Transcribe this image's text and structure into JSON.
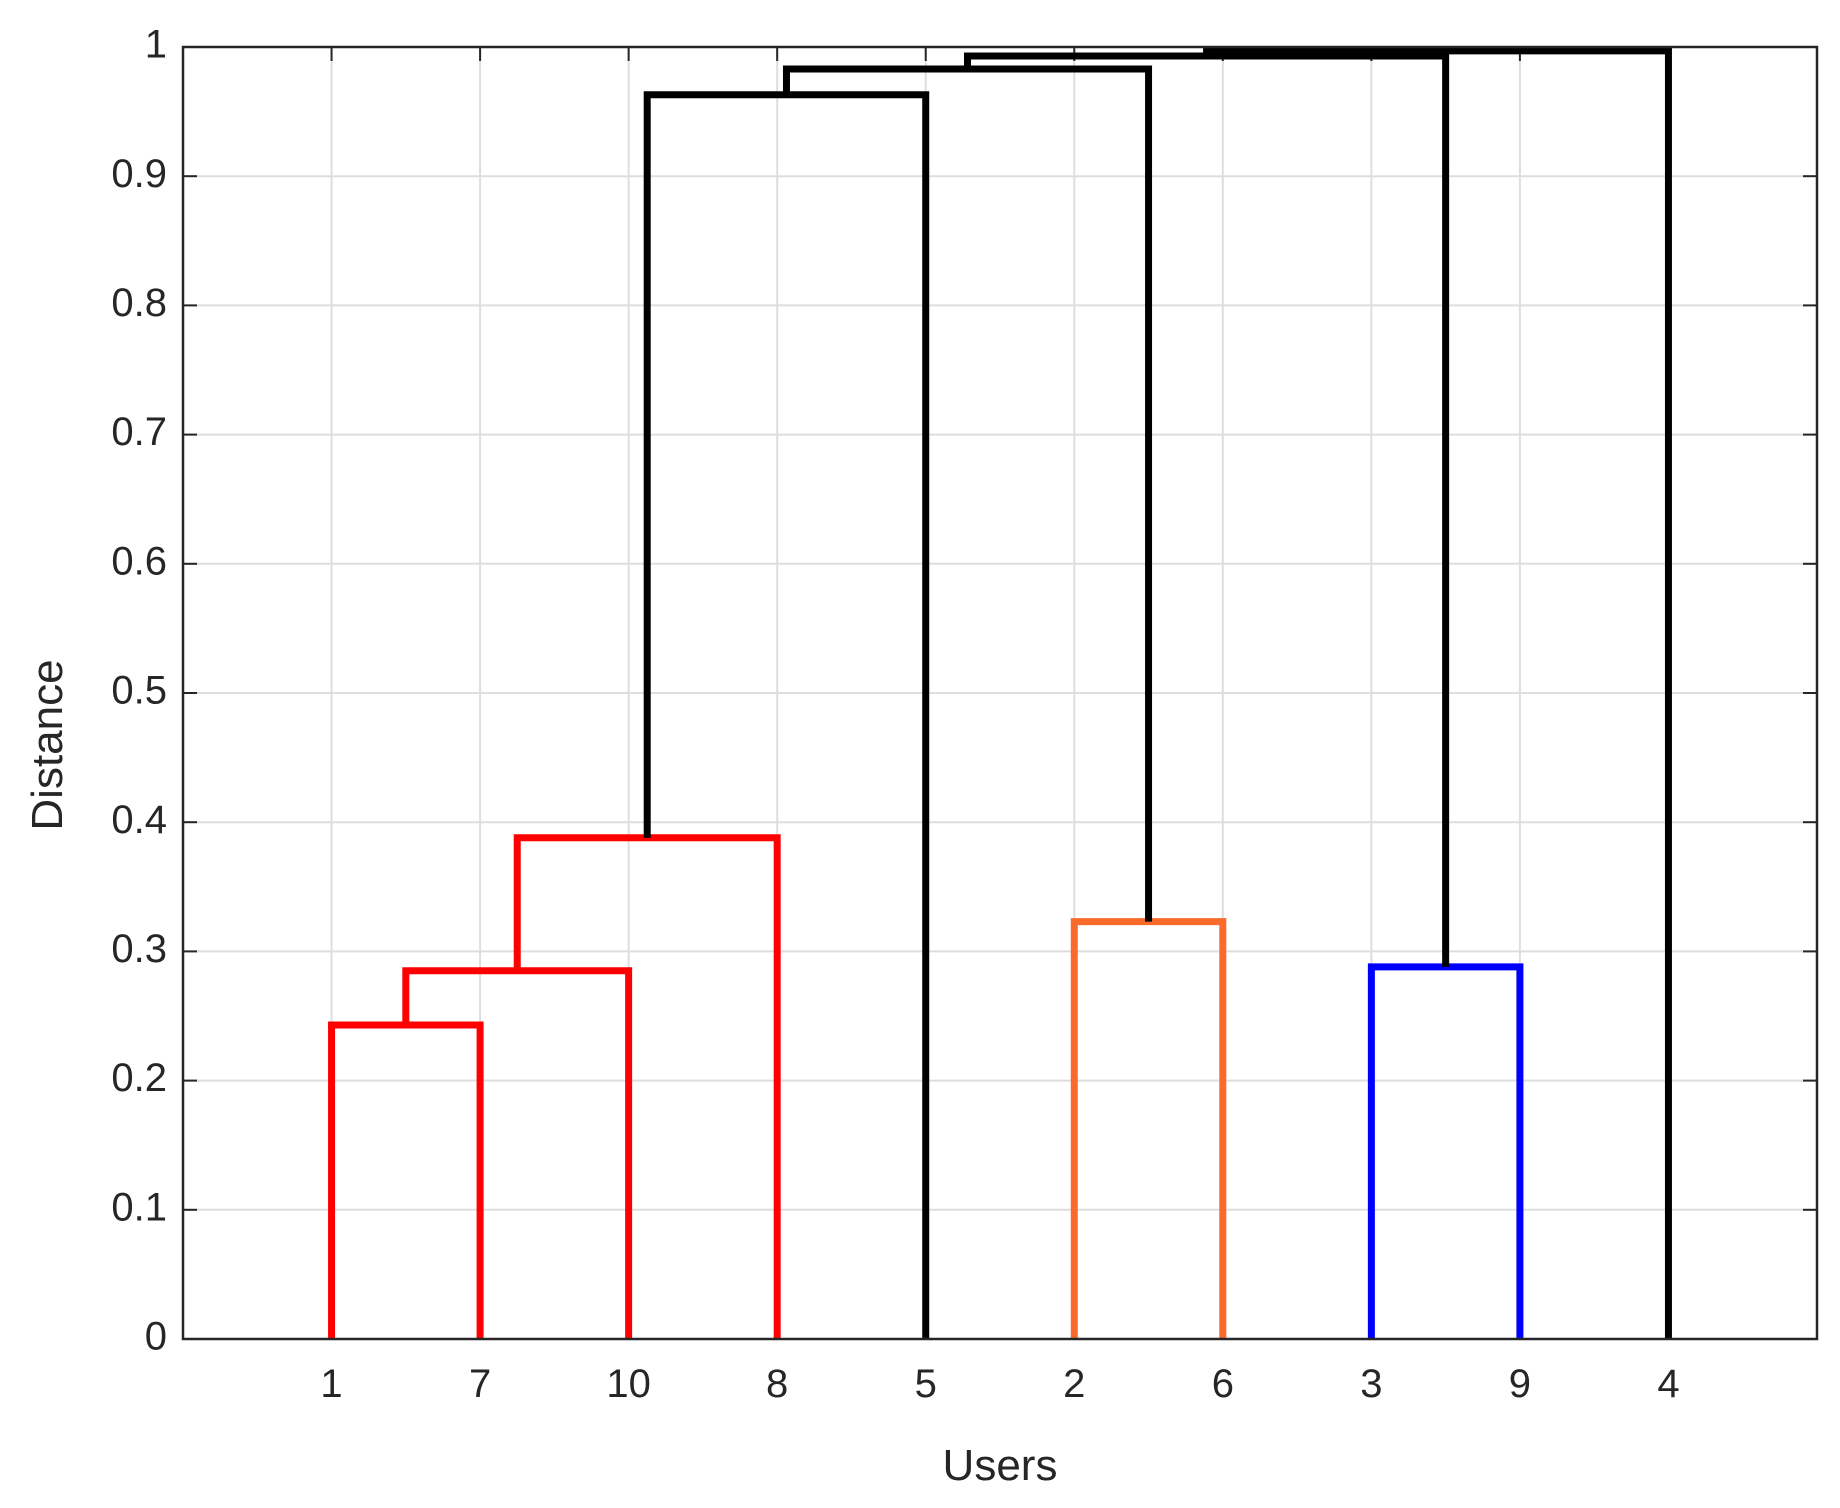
{
  "chart_data": {
    "type": "dendrogram",
    "xlabel": "Users",
    "ylabel": "Distance",
    "categories": [
      "1",
      "7",
      "10",
      "8",
      "5",
      "2",
      "6",
      "3",
      "9",
      "4"
    ],
    "merges": [
      {
        "children": [
          0,
          1
        ],
        "height": 0.243,
        "color": "#ff0000"
      },
      {
        "children": [
          10,
          2
        ],
        "height": 0.285,
        "color": "#ff0000"
      },
      {
        "children": [
          11,
          3
        ],
        "height": 0.388,
        "color": "#ff0000"
      },
      {
        "children": [
          5,
          6
        ],
        "height": 0.323,
        "color": "#f96a2b"
      },
      {
        "children": [
          7,
          8
        ],
        "height": 0.288,
        "color": "#0000ff"
      },
      {
        "children": [
          12,
          4
        ],
        "height": 0.963,
        "color": "#000000"
      },
      {
        "children": [
          15,
          13
        ],
        "height": 0.983,
        "color": "#000000"
      },
      {
        "children": [
          16,
          14
        ],
        "height": 0.993,
        "color": "#000000"
      },
      {
        "children": [
          17,
          9
        ],
        "height": 0.997,
        "color": "#000000"
      }
    ],
    "ylim": [
      0,
      1
    ],
    "yticks": [
      0,
      0.1,
      0.2,
      0.3,
      0.4,
      0.5,
      0.6,
      0.7,
      0.8,
      0.9,
      1
    ],
    "grid": true
  }
}
